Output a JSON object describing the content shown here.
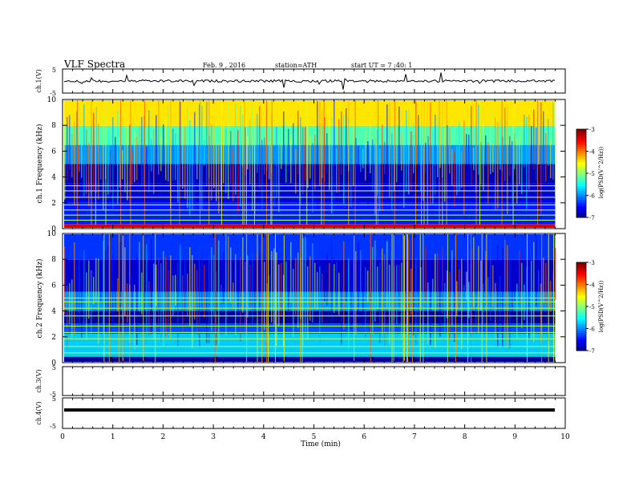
{
  "header": {
    "title": "VLF Spectra",
    "date": "Feb. 9 , 2016",
    "station": "station=ATH",
    "start": "start UT = 7 :40: 1"
  },
  "chart_data": [
    {
      "type": "line",
      "panel": "ch1-waveform",
      "ylabel": "ch.1(V)",
      "ylim": [
        -5,
        5
      ],
      "yticks": [
        "5",
        "-5"
      ],
      "series_level": "≈0 V with spikes",
      "color": "#000000"
    },
    {
      "type": "heatmap",
      "panel": "ch1-spectrogram",
      "ylabel": "ch.1 Frequency (kHz)",
      "ylim": [
        0,
        10
      ],
      "yticks": [
        "0",
        "2",
        "4",
        "6",
        "8",
        "10"
      ],
      "xlim": [
        0,
        9.8
      ],
      "dominant_log_psd_by_band": [
        {
          "band_khz": [
            0,
            0.3
          ],
          "value": -3.4
        },
        {
          "band_khz": [
            0.3,
            2.0
          ],
          "value": -6.4
        },
        {
          "band_khz": [
            2.0,
            3.5
          ],
          "value": -6.6
        },
        {
          "band_khz": [
            3.5,
            5.0
          ],
          "value": -6.8
        },
        {
          "band_khz": [
            5.0,
            6.5
          ],
          "value": -5.9
        },
        {
          "band_khz": [
            6.5,
            8.0
          ],
          "value": -5.2
        },
        {
          "band_khz": [
            8.0,
            10.0
          ],
          "value": -4.4
        }
      ],
      "horizontal_lines_khz": [
        0.6,
        1.0,
        1.4,
        1.8,
        2.4,
        2.9,
        3.3
      ],
      "colorbar": {
        "label": "log(PSD(V^2/Hz))",
        "range": [
          -7,
          -3
        ],
        "ticks": [
          "-3",
          "-4",
          "-5",
          "-6",
          "-7"
        ]
      }
    },
    {
      "type": "heatmap",
      "panel": "ch2-spectrogram",
      "ylabel": "ch.2 Frequency (kHz)",
      "ylim": [
        0,
        10
      ],
      "yticks": [
        "0",
        "2",
        "4",
        "6",
        "8",
        "10"
      ],
      "xlim": [
        0,
        9.8
      ],
      "dominant_log_psd_by_band": [
        {
          "band_khz": [
            0,
            0.4
          ],
          "value": -6.9
        },
        {
          "band_khz": [
            0.4,
            2.2
          ],
          "value": -5.7
        },
        {
          "band_khz": [
            2.2,
            3.0
          ],
          "value": -6.2
        },
        {
          "band_khz": [
            3.0,
            4.0
          ],
          "value": -6.9
        },
        {
          "band_khz": [
            4.0,
            5.5
          ],
          "value": -5.9
        },
        {
          "band_khz": [
            5.5,
            8.0
          ],
          "value": -6.7
        },
        {
          "band_khz": [
            8.0,
            10.0
          ],
          "value": -6.3
        }
      ],
      "horizontal_lines_khz": [
        0.7,
        1.2,
        1.8,
        2.3,
        2.8,
        3.6,
        4.2,
        4.7,
        5.0
      ],
      "colorbar": {
        "label": "log(PSD(V^2/Hz))",
        "range": [
          -7,
          -3
        ],
        "ticks": [
          "-3",
          "-4",
          "-5",
          "-6",
          "-7"
        ]
      }
    },
    {
      "type": "line",
      "panel": "ch3-waveform",
      "ylabel": "ch.3(V)",
      "ylim": [
        -5,
        5
      ],
      "yticks": [
        "5",
        "-5"
      ],
      "series_level": "no signal"
    },
    {
      "type": "line",
      "panel": "ch4-waveform",
      "ylabel": "ch.4(V)",
      "ylim": [
        -5,
        5
      ],
      "yticks": [
        "5",
        "-5"
      ],
      "series_level": "≈0 V (flat)",
      "color": "#000000"
    }
  ],
  "xaxis": {
    "label": "Time (min)",
    "ticks": [
      "0",
      "1",
      "2",
      "3",
      "4",
      "5",
      "6",
      "7",
      "8",
      "9",
      "10"
    ],
    "range": [
      0,
      10
    ]
  }
}
